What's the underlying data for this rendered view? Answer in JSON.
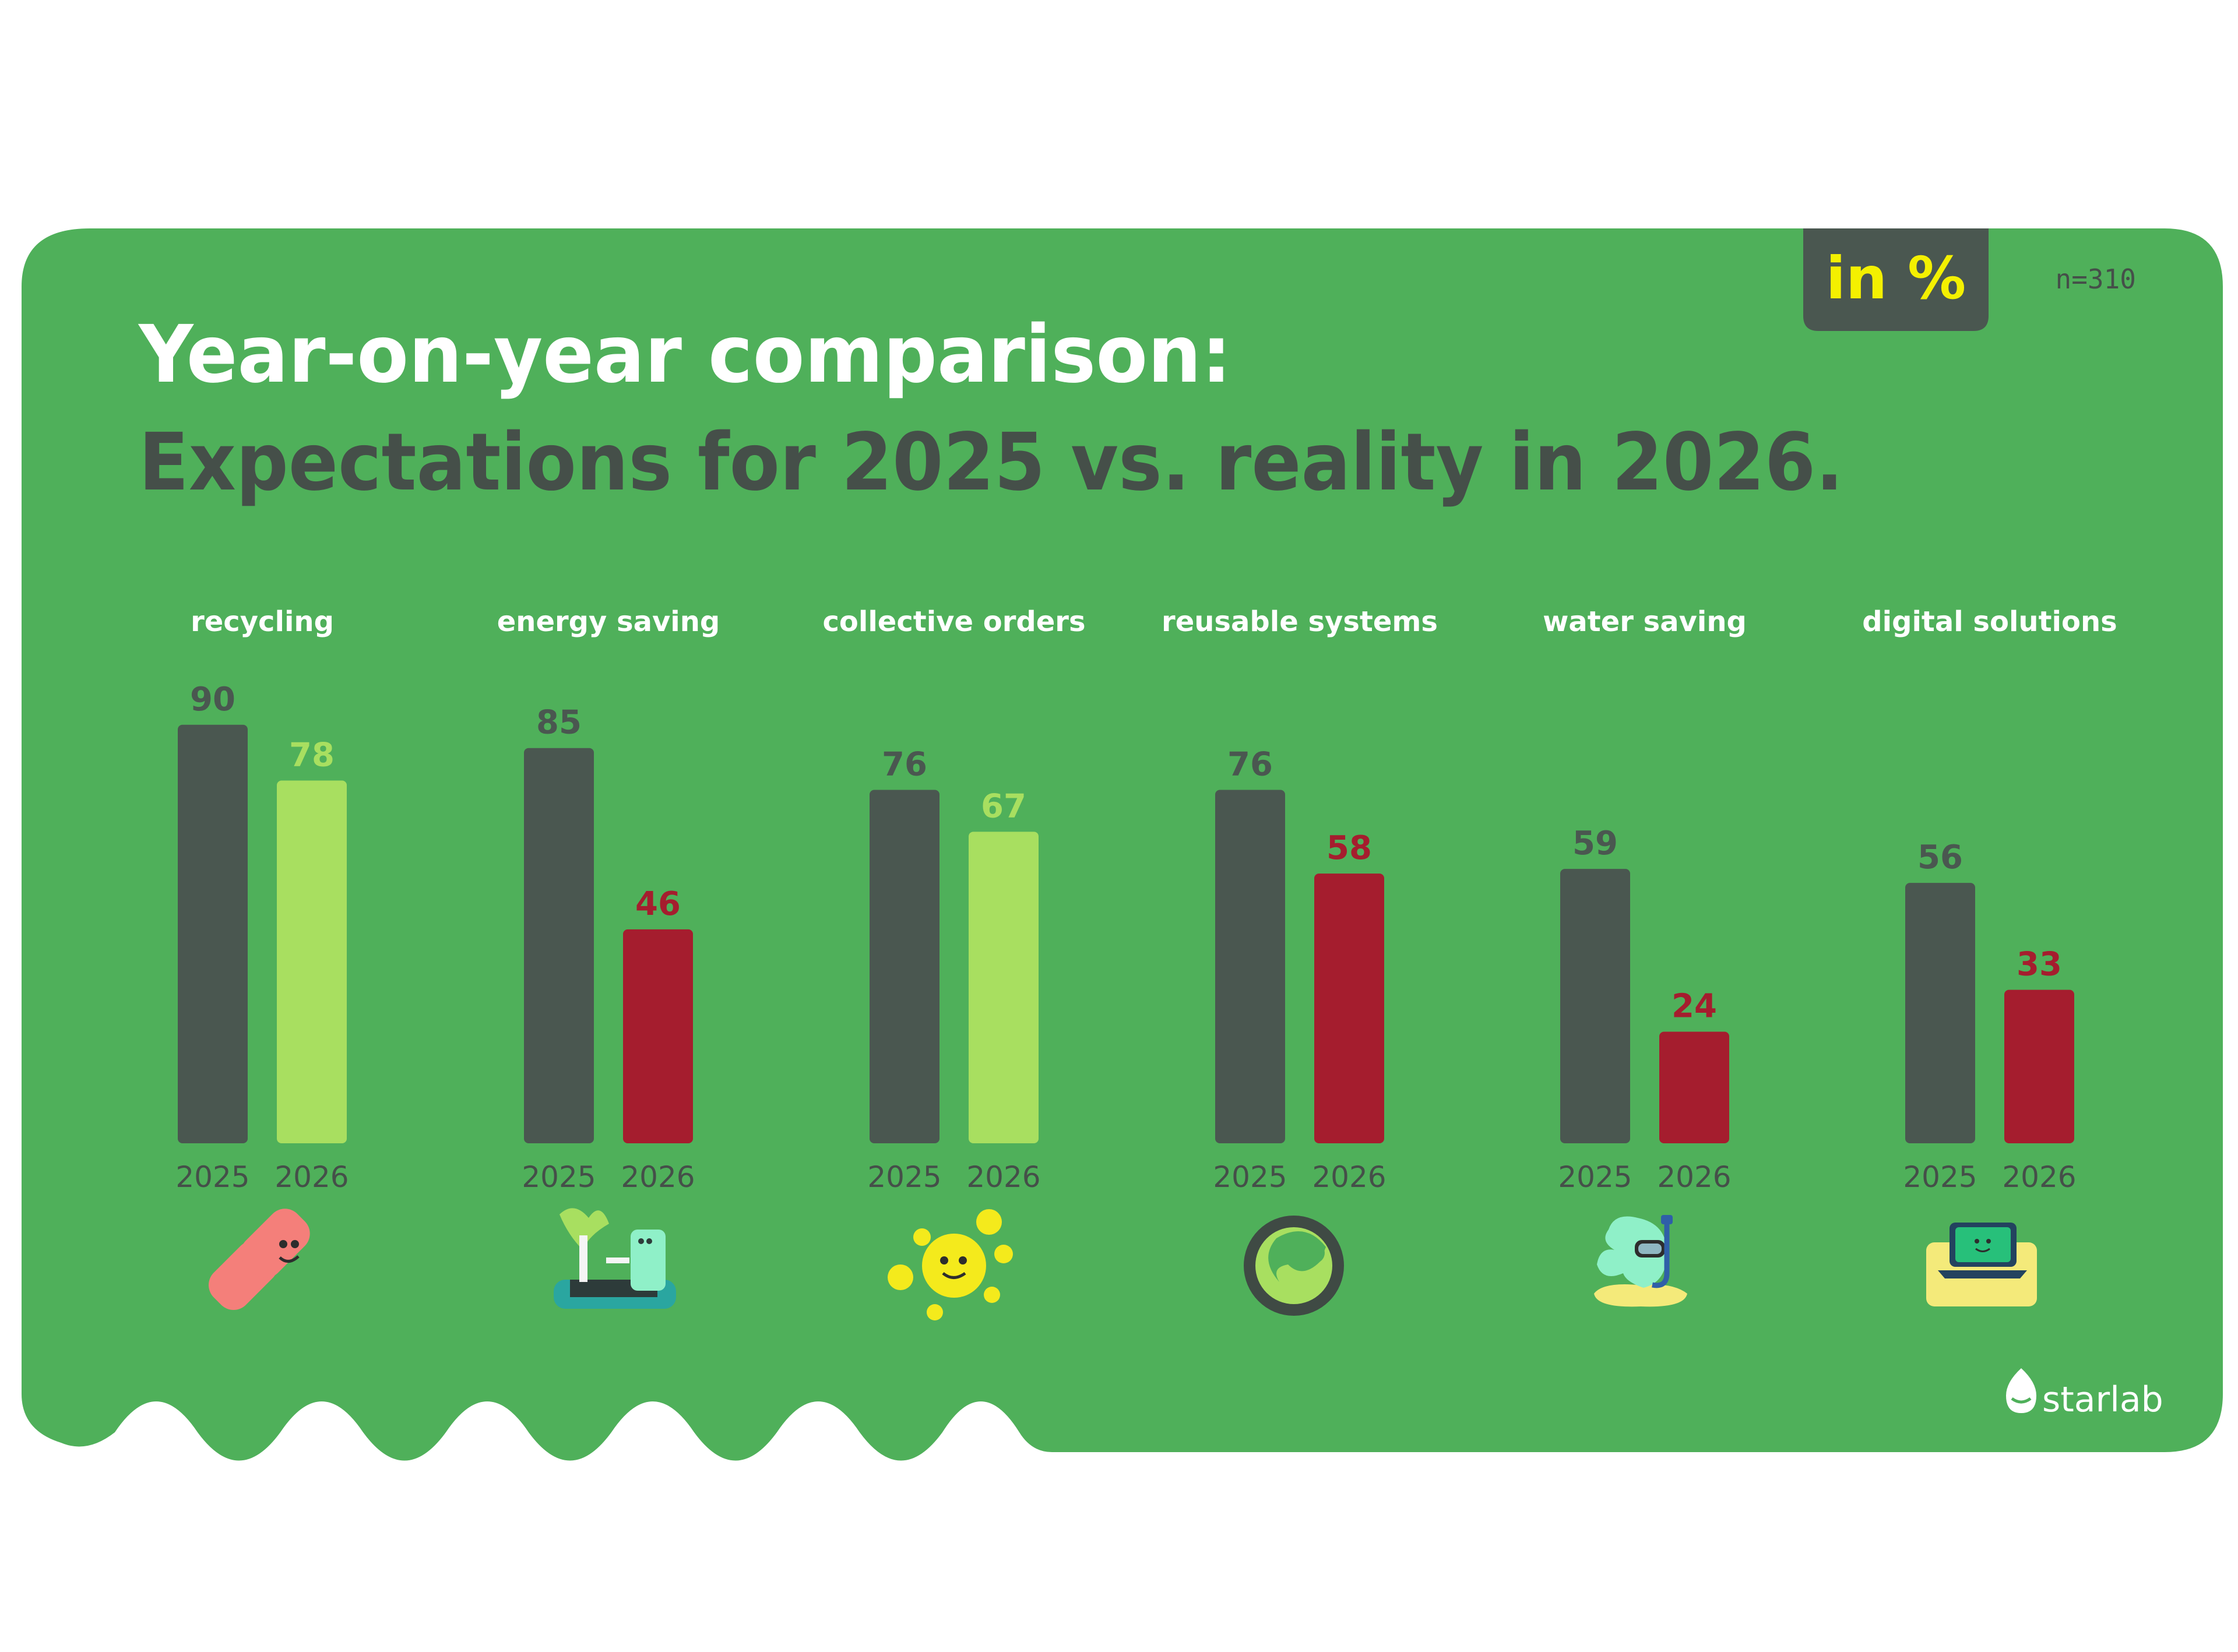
{
  "header": {
    "title_line1": "Year-on-year comparison:",
    "title_line2": "Expectations for 2025 vs. reality in 2026.",
    "unit_badge": "in %",
    "sample_size": "n=310"
  },
  "brand": {
    "name": "starlab"
  },
  "colors": {
    "background": "#4fb05a",
    "bar_2025": "#4a5750",
    "bar_2026_better": "#a8df60",
    "bar_2026_worse": "#a51d2e",
    "badge_bg": "#4a5750",
    "badge_text": "#f4f000",
    "title_white": "#ffffff",
    "title_dark": "#454f49"
  },
  "chart_data": {
    "type": "bar",
    "categories": [
      "recycling",
      "energy saving",
      "collective orders",
      "reusable systems",
      "water saving",
      "digital solutions"
    ],
    "x_tick_labels": [
      "2025",
      "2026"
    ],
    "series": [
      {
        "name": "2025",
        "values": [
          90,
          85,
          76,
          76,
          59,
          56
        ]
      },
      {
        "name": "2026",
        "values": [
          78,
          46,
          67,
          58,
          24,
          33
        ]
      }
    ],
    "icons": [
      "recycling-icon",
      "energy-saving-icon",
      "collective-orders-icon",
      "reusable-systems-icon",
      "water-saving-icon",
      "digital-solutions-icon"
    ],
    "ylim": [
      0,
      100
    ],
    "grid": false
  }
}
